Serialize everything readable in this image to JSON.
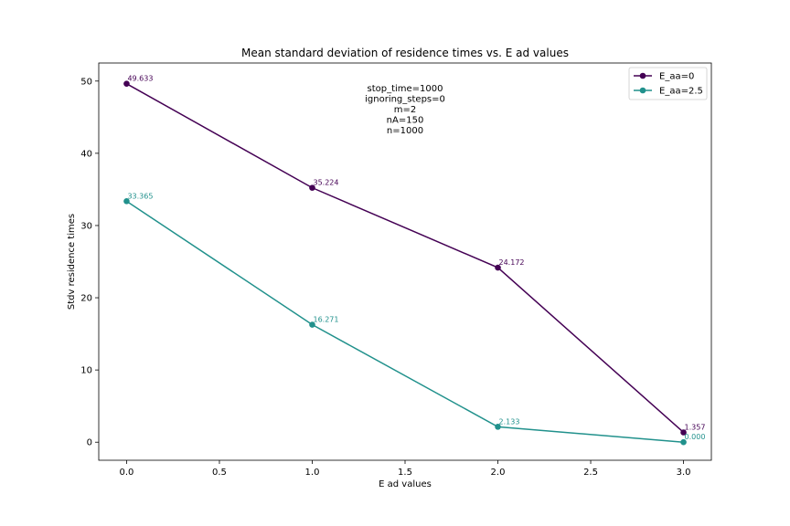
{
  "chart_data": {
    "type": "line",
    "title": "Mean standard deviation of residence times vs. E ad values",
    "xlabel": "E ad values",
    "ylabel": "Stdv residence times",
    "xlim": [
      -0.15,
      3.15
    ],
    "ylim": [
      -2.5,
      52.5
    ],
    "xticks": [
      0.0,
      0.5,
      1.0,
      1.5,
      2.0,
      2.5,
      3.0
    ],
    "xtick_labels": [
      "0.0",
      "0.5",
      "1.0",
      "1.5",
      "2.0",
      "2.5",
      "3.0"
    ],
    "yticks": [
      0,
      10,
      20,
      30,
      40,
      50
    ],
    "ytick_labels": [
      "0",
      "10",
      "20",
      "30",
      "40",
      "50"
    ],
    "grid": false,
    "legend_position": "top-right",
    "annotation_lines": [
      "stop_time=1000",
      "ignoring_steps=0",
      "m=2",
      "nA=150",
      "n=1000"
    ],
    "series": [
      {
        "name": "E_aa=0",
        "color": "#440154",
        "x": [
          0.0,
          1.0,
          2.0,
          3.0
        ],
        "y": [
          49.633,
          35.224,
          24.172,
          1.357
        ],
        "labels": [
          "49.633",
          "35.224",
          "24.172",
          "1.357"
        ]
      },
      {
        "name": "E_aa=2.5",
        "color": "#21918c",
        "x": [
          0.0,
          1.0,
          2.0,
          3.0
        ],
        "y": [
          33.365,
          16.271,
          2.133,
          0.0
        ],
        "labels": [
          "33.365",
          "16.271",
          "2.133",
          "0.000"
        ]
      }
    ]
  }
}
